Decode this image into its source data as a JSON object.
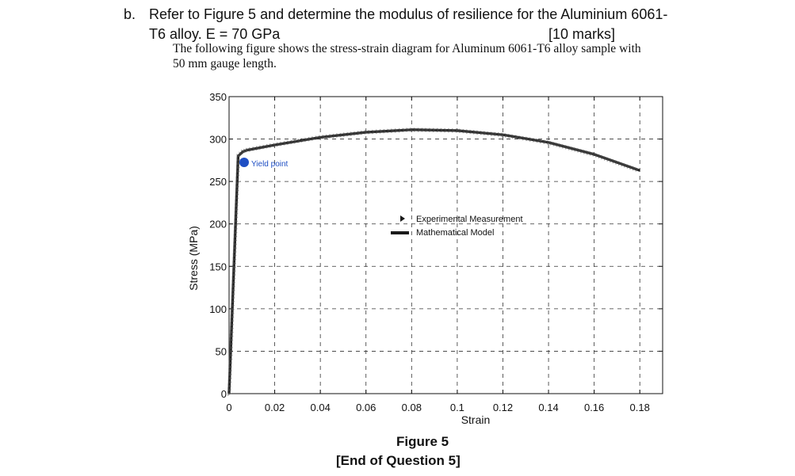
{
  "question": {
    "label": "b.",
    "line1": "Refer to Figure 5 and determine the modulus of resilience for the Aluminium 6061-",
    "line2": "T6 alloy. E = 70 GPa",
    "marks": "[10 marks]",
    "desc_line1": "The following figure shows the stress-strain diagram for Aluminum 6061-T6 alloy sample with",
    "desc_line2": "50 mm gauge length."
  },
  "caption": {
    "figure": "Figure 5",
    "end": "[End of Question 5]"
  },
  "colors": {
    "curve": "#1a1a1a",
    "yield_marker": "#1f4fc4",
    "grid": "#333333"
  },
  "chart_data": {
    "type": "line",
    "xlabel": "Strain",
    "ylabel": "Stress (MPa)",
    "xlim": [
      0,
      0.19
    ],
    "ylim": [
      0,
      350
    ],
    "grid": true,
    "grid_style": "dashed",
    "x_ticks": [
      0,
      0.02,
      0.04,
      0.06,
      0.08,
      0.1,
      0.12,
      0.14,
      0.16,
      0.18
    ],
    "x_tick_labels": [
      "0",
      "0.02",
      "0.04",
      "0.06",
      "0.08",
      "0.1",
      "0.12",
      "0.14",
      "0.16",
      "0.18"
    ],
    "y_ticks": [
      0,
      50,
      100,
      150,
      200,
      250,
      300,
      350
    ],
    "y_tick_labels": [
      "0",
      "50",
      "100",
      "150",
      "200",
      "250",
      "300",
      "350"
    ],
    "legend_position": "center-right",
    "series": [
      {
        "name": "Experimental Measurement",
        "marker": "triangle",
        "x": [
          0,
          0.004,
          0.006,
          0.008,
          0.02,
          0.04,
          0.06,
          0.08,
          0.1,
          0.12,
          0.14,
          0.16,
          0.18
        ],
        "y": [
          0,
          280,
          285,
          287,
          293,
          302,
          308,
          311,
          310,
          305,
          296,
          282,
          263
        ]
      },
      {
        "name": "Mathematical Model",
        "x": [
          0,
          0.004,
          0.006,
          0.008,
          0.02,
          0.04,
          0.06,
          0.08,
          0.1,
          0.12,
          0.14,
          0.16,
          0.18
        ],
        "y": [
          0,
          280,
          285,
          287,
          293,
          302,
          308,
          311,
          310,
          305,
          296,
          282,
          263
        ]
      }
    ],
    "annotations": [
      {
        "text": "Yield point",
        "x": 0.006,
        "y": 269
      }
    ]
  }
}
